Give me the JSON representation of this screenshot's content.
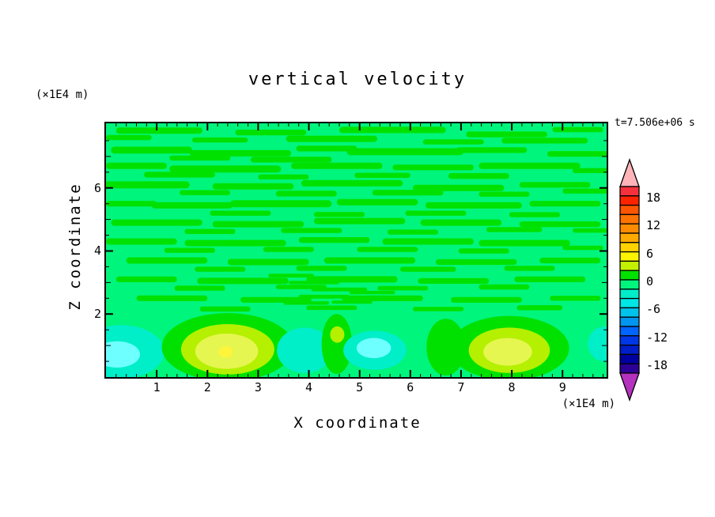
{
  "title": "vertical velocity",
  "timestamp": "t=7.506e+06 s",
  "axes": {
    "x_label": "X coordinate",
    "y_label": "Z coordinate",
    "x_units": "(×1E4 m)",
    "y_units": "(×1E4 m)"
  },
  "colorbar": {
    "labels": [
      18,
      12,
      6,
      0,
      -6,
      -12,
      -18
    ],
    "value_range": [
      -20,
      20
    ],
    "interval": 2,
    "over_color": "#ffb4b9",
    "under_color": "#b432be",
    "segment_colors_top_to_bottom": [
      "#f5323c",
      "#ff2300",
      "#ff5500",
      "#ff7300",
      "#ff8c00",
      "#ffaa00",
      "#ffd200",
      "#fcf400",
      "#c3f000",
      "#00e100",
      "#00f57d",
      "#00ecc8",
      "#00e6e6",
      "#00c3eb",
      "#0096f0",
      "#0064ff",
      "#0037e6",
      "#001ec8",
      "#0000a0",
      "#2d0096"
    ]
  },
  "chart_data": {
    "type": "heatmap",
    "subtype": "filled-contour",
    "title": "vertical velocity",
    "xlabel": "X coordinate (×1E4 m)",
    "ylabel": "Z coordinate (×1E4 m)",
    "time_annotation": "t=7.506e+06 s",
    "x_range": [
      0,
      9.87
    ],
    "y_range": [
      0,
      8.05
    ],
    "x_ticks_major": [
      1,
      2,
      3,
      4,
      5,
      6,
      7,
      8,
      9
    ],
    "x_tick_minor_step": 0.2,
    "y_ticks_major": [
      2,
      4,
      6
    ],
    "y_tick_minor_step": 0.5,
    "contour_interval": 2,
    "value_range": [
      -20,
      20
    ],
    "background_value_band": "-2 to 0",
    "palette": {
      "background": "#00f57d",
      "pos_band_1": "#00e100",
      "green": "#00e100",
      "chartreuse": "#b4f000",
      "pale_yellow_green": "#e6f650",
      "yellow": "#fdf53c",
      "turquoise": "#00eec8",
      "cyan": "#6effff"
    },
    "streaks": [
      [
        0.45,
        7.6,
        0.45,
        0.08
      ],
      [
        1.05,
        7.82,
        0.85,
        0.1
      ],
      [
        2.25,
        7.52,
        0.55,
        0.08
      ],
      [
        3.25,
        7.76,
        0.7,
        0.09
      ],
      [
        4.45,
        7.56,
        0.9,
        0.1
      ],
      [
        5.65,
        7.84,
        1.05,
        0.1
      ],
      [
        6.85,
        7.46,
        0.6,
        0.08
      ],
      [
        7.9,
        7.7,
        0.8,
        0.09
      ],
      [
        8.65,
        7.5,
        0.85,
        0.09
      ],
      [
        9.3,
        7.85,
        0.5,
        0.08
      ],
      [
        0.9,
        7.2,
        0.8,
        0.11
      ],
      [
        1.85,
        6.95,
        0.6,
        0.08
      ],
      [
        2.65,
        7.1,
        1.0,
        0.1
      ],
      [
        3.65,
        6.9,
        0.8,
        0.09
      ],
      [
        4.35,
        7.25,
        0.6,
        0.09
      ],
      [
        5.9,
        7.15,
        1.15,
        0.11
      ],
      [
        7.6,
        7.2,
        0.7,
        0.09
      ],
      [
        9.3,
        7.08,
        0.6,
        0.09
      ],
      [
        0.6,
        6.7,
        0.6,
        0.1
      ],
      [
        1.45,
        6.42,
        0.7,
        0.09
      ],
      [
        2.35,
        6.6,
        1.1,
        0.11
      ],
      [
        3.5,
        6.35,
        0.5,
        0.08
      ],
      [
        4.55,
        6.7,
        0.9,
        0.1
      ],
      [
        5.45,
        6.4,
        0.55,
        0.08
      ],
      [
        6.45,
        6.65,
        0.8,
        0.09
      ],
      [
        7.35,
        6.38,
        0.6,
        0.09
      ],
      [
        8.35,
        6.7,
        1.0,
        0.1
      ],
      [
        9.6,
        6.55,
        0.4,
        0.08
      ],
      [
        0.8,
        6.1,
        0.85,
        0.11
      ],
      [
        1.95,
        5.85,
        0.5,
        0.08
      ],
      [
        2.9,
        6.05,
        0.8,
        0.1
      ],
      [
        3.95,
        5.82,
        0.6,
        0.09
      ],
      [
        4.85,
        6.15,
        1.0,
        0.1
      ],
      [
        5.95,
        5.85,
        0.7,
        0.09
      ],
      [
        6.95,
        6.0,
        0.9,
        0.1
      ],
      [
        7.85,
        5.8,
        0.5,
        0.08
      ],
      [
        8.85,
        6.1,
        0.7,
        0.09
      ],
      [
        9.45,
        5.9,
        0.45,
        0.08
      ],
      [
        0.5,
        5.5,
        0.5,
        0.09
      ],
      [
        1.7,
        5.45,
        0.8,
        0.1
      ],
      [
        2.65,
        5.2,
        0.6,
        0.08
      ],
      [
        3.45,
        5.5,
        1.0,
        0.11
      ],
      [
        4.6,
        5.16,
        0.5,
        0.08
      ],
      [
        5.35,
        5.55,
        0.8,
        0.1
      ],
      [
        6.5,
        5.2,
        0.6,
        0.08
      ],
      [
        7.25,
        5.45,
        0.95,
        0.1
      ],
      [
        8.45,
        5.15,
        0.5,
        0.08
      ],
      [
        9.05,
        5.5,
        0.7,
        0.09
      ],
      [
        1.0,
        4.9,
        0.9,
        0.1
      ],
      [
        2.05,
        4.62,
        0.5,
        0.08
      ],
      [
        3.0,
        4.85,
        0.9,
        0.1
      ],
      [
        4.05,
        4.65,
        0.6,
        0.08
      ],
      [
        5.0,
        4.95,
        0.9,
        0.1
      ],
      [
        6.05,
        4.6,
        0.5,
        0.08
      ],
      [
        7.0,
        4.9,
        0.8,
        0.1
      ],
      [
        8.05,
        4.68,
        0.55,
        0.08
      ],
      [
        8.95,
        4.85,
        0.8,
        0.09
      ],
      [
        9.55,
        4.65,
        0.35,
        0.07
      ],
      [
        0.7,
        4.3,
        0.7,
        0.1
      ],
      [
        1.65,
        4.02,
        0.5,
        0.08
      ],
      [
        2.55,
        4.25,
        1.0,
        0.1
      ],
      [
        3.6,
        4.05,
        0.5,
        0.08
      ],
      [
        4.5,
        4.35,
        0.7,
        0.09
      ],
      [
        5.55,
        4.05,
        0.6,
        0.08
      ],
      [
        6.35,
        4.3,
        0.9,
        0.1
      ],
      [
        7.45,
        4.0,
        0.5,
        0.08
      ],
      [
        8.25,
        4.25,
        0.9,
        0.1
      ],
      [
        9.4,
        4.1,
        0.4,
        0.07
      ],
      [
        1.2,
        3.7,
        0.8,
        0.1
      ],
      [
        2.25,
        3.42,
        0.5,
        0.08
      ],
      [
        3.2,
        3.65,
        0.8,
        0.1
      ],
      [
        4.25,
        3.45,
        0.5,
        0.08
      ],
      [
        5.2,
        3.7,
        0.9,
        0.1
      ],
      [
        6.35,
        3.42,
        0.55,
        0.08
      ],
      [
        7.3,
        3.65,
        0.8,
        0.09
      ],
      [
        8.35,
        3.45,
        0.5,
        0.08
      ],
      [
        9.15,
        3.7,
        0.6,
        0.09
      ],
      [
        0.8,
        3.1,
        0.6,
        0.09
      ],
      [
        1.85,
        2.82,
        0.5,
        0.08
      ],
      [
        2.7,
        3.05,
        0.9,
        0.1
      ],
      [
        3.85,
        2.86,
        0.5,
        0.07
      ],
      [
        4.85,
        3.1,
        0.9,
        0.1
      ],
      [
        5.85,
        2.82,
        0.5,
        0.07
      ],
      [
        6.85,
        3.05,
        0.7,
        0.09
      ],
      [
        7.85,
        2.86,
        0.5,
        0.08
      ],
      [
        8.75,
        3.1,
        0.7,
        0.09
      ],
      [
        1.3,
        2.5,
        0.7,
        0.09
      ],
      [
        2.35,
        2.16,
        0.5,
        0.08
      ],
      [
        3.35,
        2.45,
        0.7,
        0.09
      ],
      [
        4.45,
        2.2,
        0.5,
        0.07
      ],
      [
        5.45,
        2.5,
        0.8,
        0.09
      ],
      [
        6.55,
        2.16,
        0.5,
        0.07
      ],
      [
        7.5,
        2.45,
        0.7,
        0.09
      ],
      [
        8.55,
        2.2,
        0.45,
        0.08
      ],
      [
        9.25,
        2.5,
        0.5,
        0.08
      ],
      [
        3.65,
        3.22,
        0.45,
        0.06
      ],
      [
        4.1,
        3.0,
        0.5,
        0.055
      ],
      [
        4.6,
        2.78,
        0.55,
        0.06
      ],
      [
        5.05,
        3.12,
        0.4,
        0.055
      ],
      [
        4.3,
        2.55,
        0.5,
        0.06
      ],
      [
        3.95,
        2.35,
        0.45,
        0.055
      ],
      [
        4.85,
        2.38,
        0.4,
        0.05
      ],
      [
        5.25,
        2.68,
        0.45,
        0.055
      ]
    ],
    "features": [
      {
        "x": 0.3,
        "z": 0.8,
        "rx": 0.85,
        "rz": 0.85,
        "c": "turquoise"
      },
      {
        "x": 0.22,
        "z": 0.72,
        "rx": 0.45,
        "rz": 0.42,
        "c": "cyan"
      },
      {
        "x": 2.4,
        "z": 0.95,
        "rx": 1.3,
        "rz": 1.08,
        "c": "green"
      },
      {
        "x": 2.4,
        "z": 0.88,
        "rx": 0.92,
        "rz": 0.8,
        "c": "chartreuse"
      },
      {
        "x": 2.38,
        "z": 0.82,
        "rx": 0.62,
        "rz": 0.56,
        "c": "pale_yellow_green"
      },
      {
        "x": 2.36,
        "z": 0.8,
        "rx": 0.14,
        "rz": 0.18,
        "c": "yellow"
      },
      {
        "x": 3.92,
        "z": 0.85,
        "rx": 0.55,
        "rz": 0.72,
        "c": "turquoise"
      },
      {
        "x": 4.55,
        "z": 1.05,
        "rx": 0.3,
        "rz": 0.95,
        "c": "green"
      },
      {
        "x": 4.56,
        "z": 1.35,
        "rx": 0.14,
        "rz": 0.26,
        "c": "chartreuse"
      },
      {
        "x": 5.3,
        "z": 0.85,
        "rx": 0.62,
        "rz": 0.62,
        "c": "turquoise"
      },
      {
        "x": 5.28,
        "z": 0.92,
        "rx": 0.34,
        "rz": 0.32,
        "c": "cyan"
      },
      {
        "x": 6.7,
        "z": 0.95,
        "rx": 0.38,
        "rz": 0.9,
        "c": "green"
      },
      {
        "x": 7.95,
        "z": 0.92,
        "rx": 1.18,
        "rz": 1.02,
        "c": "green"
      },
      {
        "x": 7.95,
        "z": 0.85,
        "rx": 0.8,
        "rz": 0.72,
        "c": "chartreuse"
      },
      {
        "x": 7.92,
        "z": 0.8,
        "rx": 0.48,
        "rz": 0.44,
        "c": "pale_yellow_green"
      },
      {
        "x": 9.82,
        "z": 1.05,
        "rx": 0.32,
        "rz": 0.55,
        "c": "turquoise"
      }
    ]
  }
}
